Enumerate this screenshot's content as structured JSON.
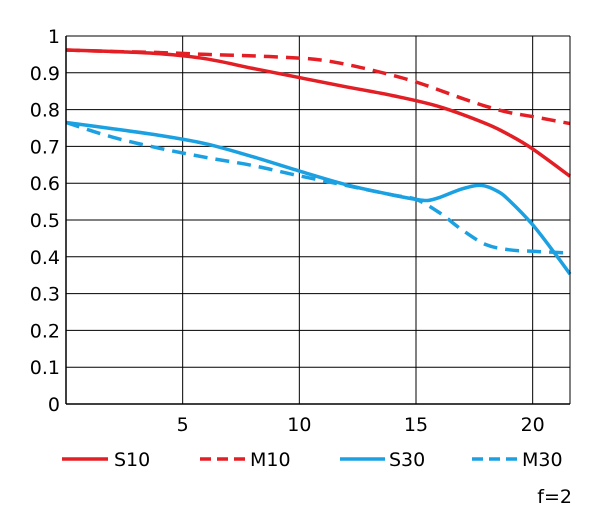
{
  "chart_data": {
    "type": "line",
    "title": "",
    "xlabel": "",
    "ylabel": "",
    "xlim": [
      0,
      21.6
    ],
    "ylim": [
      0,
      1
    ],
    "x_ticks": [
      5,
      10,
      15,
      20
    ],
    "x_tick_labels": [
      "5",
      "10",
      "15",
      "20"
    ],
    "y_ticks": [
      0,
      0.1,
      0.2,
      0.3,
      0.4,
      0.5,
      0.6,
      0.7,
      0.8,
      0.9,
      1
    ],
    "y_tick_labels": [
      "0",
      "0.1",
      "0.2",
      "0.3",
      "0.4",
      "0.5",
      "0.6",
      "0.7",
      "0.8",
      "0.9",
      "1"
    ],
    "grid": true,
    "legend_position": "bottom",
    "series": [
      {
        "name": "S10",
        "color": "#e31e24",
        "dash": "solid",
        "x": [
          0,
          2,
          4,
          6,
          8,
          10,
          12,
          14,
          16,
          18,
          19,
          20,
          21.6
        ],
        "y": [
          0.962,
          0.958,
          0.952,
          0.938,
          0.912,
          0.887,
          0.862,
          0.838,
          0.808,
          0.762,
          0.731,
          0.693,
          0.619
        ]
      },
      {
        "name": "M10",
        "color": "#e31e24",
        "dash": "dashed",
        "x": [
          0,
          2,
          4,
          6,
          8,
          10,
          11,
          12,
          13,
          14,
          15,
          16,
          17,
          18,
          19,
          20,
          21.6
        ],
        "y": [
          0.962,
          0.958,
          0.955,
          0.95,
          0.946,
          0.94,
          0.934,
          0.923,
          0.909,
          0.893,
          0.875,
          0.853,
          0.83,
          0.809,
          0.792,
          0.781,
          0.762
        ]
      },
      {
        "name": "S30",
        "color": "#1ba1e2",
        "dash": "solid",
        "x": [
          0,
          2,
          4,
          6,
          8,
          10,
          12,
          14,
          15,
          15.5,
          16,
          17,
          17.8,
          18.5,
          19,
          20,
          21,
          21.6
        ],
        "y": [
          0.765,
          0.748,
          0.73,
          0.707,
          0.672,
          0.633,
          0.596,
          0.568,
          0.556,
          0.553,
          0.561,
          0.585,
          0.594,
          0.578,
          0.553,
          0.487,
          0.405,
          0.353
        ]
      },
      {
        "name": "M30",
        "color": "#1ba1e2",
        "dash": "dashed",
        "x": [
          0,
          2,
          4,
          6,
          8,
          10,
          12,
          14,
          15,
          16,
          17,
          18,
          19,
          20,
          21,
          21.6
        ],
        "y": [
          0.765,
          0.725,
          0.695,
          0.67,
          0.648,
          0.62,
          0.594,
          0.568,
          0.556,
          0.52,
          0.472,
          0.433,
          0.419,
          0.415,
          0.412,
          0.41
        ]
      }
    ],
    "annotation": "f=2"
  }
}
